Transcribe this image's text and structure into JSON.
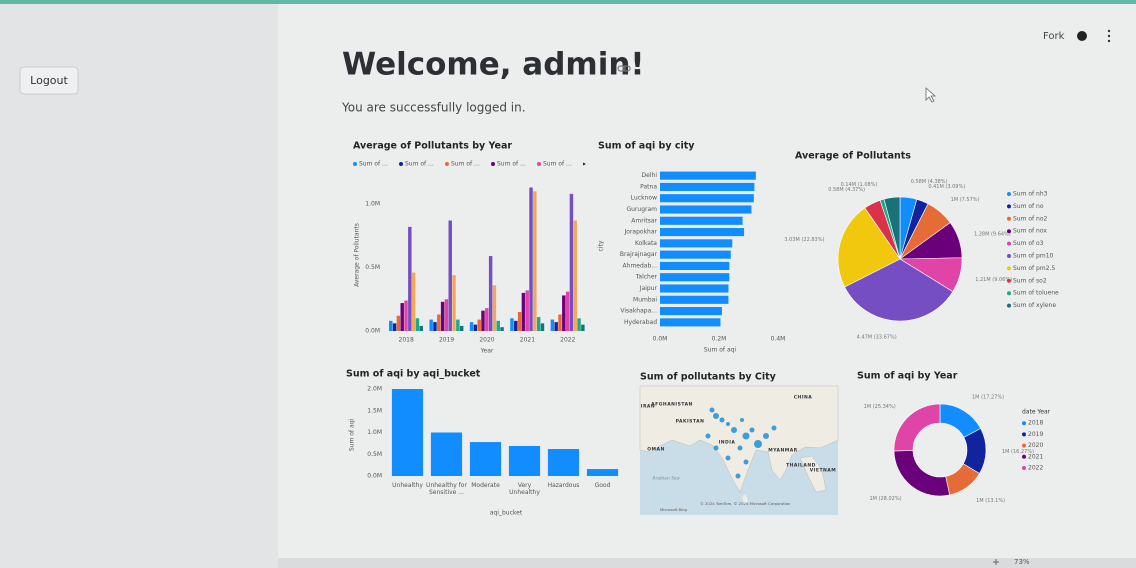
{
  "sidebar": {
    "button": "Logout"
  },
  "toolbar": {
    "fork": "Fork",
    "zoom": "73%"
  },
  "header": {
    "title": "Welcome, admin!",
    "subtitle": "You are successfully logged in."
  },
  "chart_data": [
    {
      "type": "bar",
      "title": "Average of Pollutants by Year",
      "x_label": "Year",
      "y_label": "Average of Pollutants",
      "legend_more": "▸",
      "categories": [
        "2018",
        "2019",
        "2020",
        "2021",
        "2022"
      ],
      "ylim": [
        0,
        1200000
      ],
      "yticks": [
        {
          "value": 0,
          "label": "0.0M"
        },
        {
          "value": 500000,
          "label": "0.5M"
        },
        {
          "value": 1000000,
          "label": "1.0M"
        }
      ],
      "grid": false,
      "series": [
        {
          "name": "Sum of ...",
          "color": "#118dff",
          "values": [
            80000,
            90000,
            70000,
            100000,
            90000
          ]
        },
        {
          "name": "Sum of ...",
          "color": "#12239e",
          "values": [
            60000,
            70000,
            50000,
            80000,
            70000
          ]
        },
        {
          "name": "Sum of ...",
          "color": "#e66c37",
          "values": [
            120000,
            130000,
            90000,
            150000,
            130000
          ]
        },
        {
          "name": "Sum of ...",
          "color": "#6b007b",
          "values": [
            220000,
            230000,
            160000,
            300000,
            280000
          ]
        },
        {
          "name": "Sum of ...",
          "color": "#e044a7",
          "values": [
            240000,
            250000,
            180000,
            320000,
            310000
          ]
        },
        {
          "color": "#744ec2",
          "values": [
            820000,
            870000,
            590000,
            1130000,
            1080000
          ]
        },
        {
          "color": "#f2a85a",
          "values": [
            460000,
            440000,
            360000,
            1100000,
            870000
          ]
        },
        {
          "color": "#1aab8a",
          "values": [
            100000,
            90000,
            80000,
            110000,
            100000
          ]
        },
        {
          "color": "#197278",
          "values": [
            40000,
            40000,
            30000,
            60000,
            50000
          ]
        }
      ]
    },
    {
      "type": "hbar",
      "title": "Sum of aqi by city",
      "x_label": "Sum of aqi",
      "y_label": "city",
      "color": "#118dff",
      "categories": [
        "Delhi",
        "Patna",
        "Lucknow",
        "Gurugram",
        "Amritsar",
        "Jorapokhar",
        "Kolkata",
        "Brajrajnagar",
        "Ahmedab...",
        "Talcher",
        "Jaipur",
        "Mumbai",
        "Visakhapa...",
        "Hyderabad"
      ],
      "values": [
        325000,
        320000,
        318000,
        310000,
        280000,
        285000,
        245000,
        240000,
        235000,
        235000,
        232000,
        232000,
        210000,
        205000
      ],
      "xlim": [
        0,
        400000
      ],
      "xticks": [
        {
          "value": 0,
          "label": "0.0M"
        },
        {
          "value": 200000,
          "label": "0.2M"
        },
        {
          "value": 400000,
          "label": "0.4M"
        }
      ]
    },
    {
      "type": "pie",
      "title": "Average of Pollutants",
      "categories": [
        "Sum of nh3",
        "Sum of no",
        "Sum of no2",
        "Sum of nox",
        "Sum of o3",
        "Sum of pm10",
        "Sum of pm2.5",
        "Sum of so2",
        "Sum of toluene",
        "Sum of xylene"
      ],
      "colors": [
        "#118dff",
        "#12239e",
        "#e66c37",
        "#6b007b",
        "#e044a7",
        "#744ec2",
        "#f2c80f",
        "#d9324a",
        "#1aab8a",
        "#197278"
      ],
      "values": [
        0.58,
        0.41,
        1,
        1.28,
        1.21,
        4.47,
        3.03,
        0.58,
        0.14,
        0.55
      ],
      "value_labels": [
        "0.58M (4.38%)",
        "0.41M (3.09%)",
        "1M (7.57%)",
        "1.28M (9.64%)",
        "1.21M (9.06%)",
        "4.47M (33.67%)",
        "3.03M (22.83%)",
        "0.58M (4.37%)",
        "0.14M (1.08%)",
        null
      ]
    },
    {
      "type": "bar",
      "title": "Sum of aqi by aqi_bucket",
      "x_label": "aqi_bucket",
      "y_label": "Sum of aqi",
      "color": "#118dff",
      "categories": [
        "Unhealthy",
        "Unhealthy for Sensitive ...",
        "Moderate",
        "Very Unhealthy",
        "Hazardous",
        "Good"
      ],
      "values": [
        2000000,
        1000000,
        780000,
        690000,
        620000,
        160000
      ],
      "ylim": [
        0,
        2000000
      ],
      "yticks": [
        {
          "value": 0,
          "label": "0.0M"
        },
        {
          "value": 500000,
          "label": "0.5M"
        },
        {
          "value": 1000000,
          "label": "1.0M"
        },
        {
          "value": 1500000,
          "label": "1.5M"
        },
        {
          "value": 2000000,
          "label": "2.0M"
        }
      ],
      "grid": false
    },
    {
      "type": "map",
      "title": "Sum of pollutants by City",
      "labels": [
        "CHINA",
        "AFGHANISTAN",
        "IRAN",
        "PAKISTAN",
        "INDIA",
        "OMAN",
        "MYANMAR",
        "THAILAND",
        "VIETNAM",
        "Arabian Sea"
      ],
      "credits": [
        "© 2024 TomTom, © 2024 Microsoft Corporation",
        "Microsoft Bing"
      ]
    },
    {
      "type": "donut",
      "title": "Sum of aqi by Year",
      "legend_title": "date Year",
      "categories": [
        "2018",
        "2019",
        "2020",
        "2021",
        "2022"
      ],
      "colors": [
        "#118dff",
        "#12239e",
        "#e66c37",
        "#6b007b",
        "#e044a7"
      ],
      "values": [
        17.27,
        16.27,
        13.1,
        28.02,
        25.34
      ],
      "value_labels": [
        "1M (17.27%)",
        "1M (16.27%)",
        "1M (13.1%)",
        "1M (28.02%)",
        "1M (25.34%)"
      ]
    }
  ]
}
